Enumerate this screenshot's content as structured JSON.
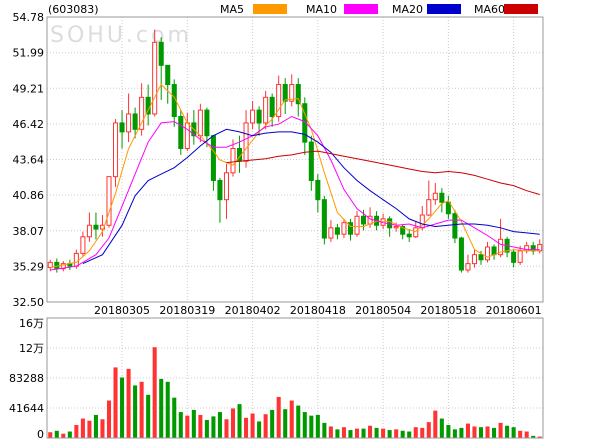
{
  "stock_code": "(603083)",
  "watermark": "SOHU.com",
  "legend": [
    {
      "label": "MA5",
      "color": "#ff9900"
    },
    {
      "label": "MA10",
      "color": "#ff00ff"
    },
    {
      "label": "MA20",
      "color": "#0000cc"
    },
    {
      "label": "MA60",
      "color": "#cc0000"
    }
  ],
  "colors": {
    "up": "#ff3333",
    "down": "#009900",
    "grid": "#cccccc",
    "frame": "#999999"
  },
  "chart_data": {
    "type": "candlestick",
    "price_axis": {
      "ylim": [
        32.5,
        54.78
      ],
      "ticks": [
        "54.78",
        "51.99",
        "49.21",
        "46.42",
        "43.64",
        "40.86",
        "38.07",
        "35.29",
        "32.50"
      ]
    },
    "volume_axis": {
      "ylim": [
        0,
        166576
      ],
      "ticks": [
        {
          "label": "16万",
          "value": 166576
        },
        {
          "label": "12万",
          "value": 124932
        },
        {
          "label": "83288",
          "value": 83288
        },
        {
          "label": "41644",
          "value": 41644
        },
        {
          "label": "0",
          "value": 0
        }
      ]
    },
    "x_labels": [
      {
        "label": "20180305",
        "index": 11
      },
      {
        "label": "20180319",
        "index": 21
      },
      {
        "label": "20180402",
        "index": 31
      },
      {
        "label": "20180418",
        "index": 41
      },
      {
        "label": "20180504",
        "index": 51
      },
      {
        "label": "20180518",
        "index": 61
      },
      {
        "label": "20180601",
        "index": 71
      }
    ],
    "candles": [
      [
        35.2,
        35.6,
        34.9,
        35.8
      ],
      [
        35.6,
        35.1,
        34.8,
        35.9
      ],
      [
        35.1,
        35.5,
        34.9,
        35.7
      ],
      [
        35.5,
        35.3,
        35.0,
        35.8
      ],
      [
        35.3,
        36.3,
        35.1,
        36.6
      ],
      [
        36.3,
        37.6,
        36.1,
        38.0
      ],
      [
        37.6,
        38.5,
        37.2,
        39.5
      ],
      [
        38.5,
        38.2,
        37.4,
        39.5
      ],
      [
        38.2,
        38.5,
        37.6,
        39.3
      ],
      [
        38.5,
        42.3,
        38.3,
        42.3
      ],
      [
        42.3,
        46.5,
        41.5,
        46.8
      ],
      [
        46.5,
        45.8,
        44.5,
        47.5
      ],
      [
        45.8,
        47.2,
        45.0,
        48.8
      ],
      [
        47.2,
        46.0,
        45.3,
        47.7
      ],
      [
        46.0,
        48.5,
        45.5,
        49.6
      ],
      [
        48.5,
        47.2,
        46.3,
        49.5
      ],
      [
        47.2,
        52.8,
        47.0,
        53.8
      ],
      [
        52.8,
        51.0,
        48.3,
        53.2
      ],
      [
        51.0,
        49.5,
        48.0,
        51.0
      ],
      [
        49.5,
        47.0,
        46.2,
        49.9
      ],
      [
        47.0,
        44.5,
        44.0,
        47.5
      ],
      [
        44.5,
        46.5,
        44.3,
        47.3
      ],
      [
        46.5,
        45.5,
        44.8,
        47.5
      ],
      [
        45.5,
        47.5,
        45.0,
        48.0
      ],
      [
        47.5,
        45.5,
        44.6,
        47.7
      ],
      [
        45.5,
        42.0,
        41.2,
        45.5
      ],
      [
        42.0,
        40.5,
        38.7,
        42.2
      ],
      [
        40.5,
        42.6,
        39.0,
        43.3
      ],
      [
        42.6,
        44.5,
        42.3,
        45.2
      ],
      [
        44.5,
        43.5,
        42.6,
        45.5
      ],
      [
        43.5,
        46.5,
        43.0,
        47.5
      ],
      [
        46.5,
        47.5,
        46.0,
        48.2
      ],
      [
        47.5,
        46.5,
        45.5,
        47.8
      ],
      [
        46.5,
        48.5,
        46.0,
        49.0
      ],
      [
        48.5,
        47.0,
        46.2,
        48.8
      ],
      [
        47.0,
        49.5,
        46.6,
        50.2
      ],
      [
        49.5,
        48.2,
        47.2,
        50.0
      ],
      [
        48.2,
        49.5,
        47.8,
        50.3
      ],
      [
        49.5,
        48.0,
        47.0,
        50.0
      ],
      [
        48.0,
        45.0,
        44.0,
        48.5
      ],
      [
        45.0,
        42.0,
        41.2,
        45.5
      ],
      [
        42.0,
        40.5,
        39.5,
        42.5
      ],
      [
        40.5,
        37.5,
        37.0,
        40.8
      ],
      [
        37.5,
        38.3,
        37.2,
        38.9
      ],
      [
        38.3,
        37.8,
        37.4,
        38.6
      ],
      [
        37.8,
        38.7,
        37.5,
        39.0
      ],
      [
        38.7,
        37.8,
        37.3,
        39.0
      ],
      [
        37.8,
        39.2,
        37.6,
        39.6
      ],
      [
        39.2,
        38.6,
        38.1,
        39.7
      ],
      [
        38.6,
        39.2,
        38.3,
        39.9
      ],
      [
        39.2,
        38.5,
        38.1,
        39.6
      ],
      [
        38.5,
        39.0,
        38.2,
        39.4
      ],
      [
        39.0,
        38.3,
        37.6,
        39.2
      ],
      [
        38.3,
        38.4,
        38.0,
        38.7
      ],
      [
        38.4,
        37.8,
        37.4,
        38.6
      ],
      [
        37.8,
        37.6,
        37.2,
        38.2
      ],
      [
        37.6,
        38.3,
        37.5,
        38.8
      ],
      [
        38.3,
        39.3,
        38.1,
        40.0
      ],
      [
        39.3,
        40.5,
        39.2,
        42.0
      ],
      [
        40.5,
        41.0,
        40.1,
        41.8
      ],
      [
        41.0,
        40.3,
        39.5,
        41.4
      ],
      [
        40.3,
        39.4,
        39.0,
        40.8
      ],
      [
        39.4,
        37.5,
        37.1,
        39.7
      ],
      [
        37.5,
        35.0,
        34.8,
        37.6
      ],
      [
        35.0,
        35.5,
        34.8,
        36.2
      ],
      [
        35.5,
        36.2,
        35.2,
        36.6
      ],
      [
        36.2,
        35.8,
        35.4,
        36.5
      ],
      [
        35.8,
        36.8,
        35.6,
        37.2
      ],
      [
        36.8,
        36.2,
        35.8,
        37.0
      ],
      [
        36.2,
        37.4,
        36.0,
        39.0
      ],
      [
        37.4,
        36.4,
        36.0,
        37.6
      ],
      [
        36.4,
        35.6,
        35.2,
        36.6
      ],
      [
        35.6,
        36.5,
        35.4,
        36.9
      ],
      [
        36.5,
        36.9,
        36.3,
        37.2
      ],
      [
        36.9,
        36.5,
        36.2,
        37.2
      ],
      [
        36.5,
        37.0,
        36.3,
        37.4
      ]
    ],
    "volumes": [
      8000,
      10000,
      6000,
      9000,
      18000,
      27000,
      24000,
      32000,
      26000,
      52000,
      98000,
      84000,
      96000,
      73000,
      78000,
      60000,
      126000,
      82000,
      78000,
      56000,
      36000,
      31000,
      39000,
      32000,
      25000,
      30000,
      36000,
      26000,
      41000,
      47000,
      28000,
      34000,
      23000,
      33000,
      39000,
      57000,
      40000,
      52000,
      45000,
      36000,
      31000,
      32000,
      21000,
      16000,
      12000,
      15000,
      11000,
      13000,
      13000,
      17000,
      14000,
      13000,
      11000,
      12000,
      10000,
      9000,
      15000,
      14000,
      22000,
      38000,
      27000,
      18000,
      12000,
      14000,
      20000,
      16000,
      15000,
      16000,
      14000,
      21000,
      17000,
      15000,
      10000,
      9000,
      3000,
      2000
    ],
    "ma": {
      "MA5": [
        [
          0,
          35.2
        ],
        [
          4,
          35.6
        ],
        [
          6,
          36.5
        ],
        [
          8,
          38.0
        ],
        [
          10,
          41.0
        ],
        [
          12,
          44.5
        ],
        [
          14,
          46.5
        ],
        [
          16,
          48.5
        ],
        [
          17,
          49.5
        ],
        [
          19,
          48.5
        ],
        [
          21,
          46.5
        ],
        [
          23,
          45.5
        ],
        [
          25,
          44.3
        ],
        [
          26,
          43.6
        ],
        [
          28,
          43.2
        ],
        [
          30,
          44.5
        ],
        [
          32,
          45.8
        ],
        [
          34,
          46.8
        ],
        [
          36,
          48.3
        ],
        [
          38,
          48.4
        ],
        [
          40,
          46.0
        ],
        [
          42,
          42.6
        ],
        [
          44,
          39.5
        ],
        [
          46,
          38.4
        ],
        [
          48,
          38.4
        ],
        [
          50,
          38.8
        ],
        [
          52,
          38.8
        ],
        [
          54,
          38.3
        ],
        [
          56,
          38.0
        ],
        [
          58,
          39.0
        ],
        [
          60,
          40.2
        ],
        [
          61,
          40.4
        ],
        [
          63,
          38.8
        ],
        [
          65,
          36.6
        ],
        [
          67,
          36.0
        ],
        [
          69,
          36.4
        ],
        [
          71,
          36.6
        ],
        [
          73,
          36.5
        ],
        [
          75,
          36.5
        ]
      ],
      "MA10": [
        [
          0,
          35.0
        ],
        [
          4,
          35.3
        ],
        [
          7,
          36.2
        ],
        [
          9,
          37.5
        ],
        [
          11,
          40.0
        ],
        [
          13,
          42.5
        ],
        [
          15,
          45.0
        ],
        [
          17,
          46.5
        ],
        [
          19,
          46.6
        ],
        [
          21,
          46.0
        ],
        [
          23,
          45.2
        ],
        [
          25,
          44.6
        ],
        [
          27,
          44.6
        ],
        [
          29,
          45.0
        ],
        [
          31,
          45.5
        ],
        [
          33,
          46.2
        ],
        [
          35,
          46.4
        ],
        [
          37,
          47.0
        ],
        [
          39,
          46.6
        ],
        [
          41,
          45.5
        ],
        [
          43,
          43.6
        ],
        [
          45,
          41.3
        ],
        [
          47,
          39.8
        ],
        [
          49,
          39.0
        ],
        [
          51,
          38.7
        ],
        [
          53,
          38.5
        ],
        [
          55,
          38.6
        ],
        [
          57,
          38.3
        ],
        [
          59,
          38.6
        ],
        [
          61,
          38.9
        ],
        [
          63,
          38.9
        ],
        [
          65,
          38.3
        ],
        [
          67,
          37.7
        ],
        [
          69,
          37.0
        ],
        [
          71,
          36.8
        ],
        [
          73,
          36.6
        ],
        [
          75,
          36.6
        ]
      ],
      "MA20": [
        [
          5,
          35.5
        ],
        [
          8,
          36.2
        ],
        [
          11,
          38.5
        ],
        [
          13,
          40.8
        ],
        [
          15,
          42.0
        ],
        [
          17,
          42.5
        ],
        [
          19,
          43.0
        ],
        [
          21,
          43.8
        ],
        [
          23,
          44.7
        ],
        [
          25,
          45.5
        ],
        [
          27,
          46.0
        ],
        [
          29,
          45.8
        ],
        [
          31,
          45.5
        ],
        [
          33,
          45.7
        ],
        [
          35,
          45.8
        ],
        [
          37,
          45.8
        ],
        [
          39,
          45.6
        ],
        [
          41,
          45.0
        ],
        [
          43,
          44.2
        ],
        [
          45,
          43.0
        ],
        [
          47,
          42.0
        ],
        [
          49,
          41.2
        ],
        [
          51,
          40.5
        ],
        [
          53,
          39.8
        ],
        [
          55,
          39.0
        ],
        [
          57,
          38.6
        ],
        [
          59,
          38.4
        ],
        [
          61,
          38.5
        ],
        [
          63,
          38.6
        ],
        [
          65,
          38.6
        ],
        [
          67,
          38.5
        ],
        [
          69,
          38.3
        ],
        [
          71,
          38.0
        ],
        [
          73,
          37.9
        ],
        [
          75,
          37.8
        ]
      ],
      "MA60": [
        [
          27,
          43.4
        ],
        [
          29,
          43.5
        ],
        [
          31,
          43.6
        ],
        [
          33,
          43.7
        ],
        [
          35,
          43.9
        ],
        [
          37,
          44.0
        ],
        [
          39,
          44.2
        ],
        [
          41,
          44.3
        ],
        [
          43,
          44.1
        ],
        [
          45,
          43.9
        ],
        [
          47,
          43.7
        ],
        [
          49,
          43.5
        ],
        [
          51,
          43.3
        ],
        [
          53,
          43.1
        ],
        [
          55,
          42.9
        ],
        [
          57,
          42.7
        ],
        [
          59,
          42.6
        ],
        [
          61,
          42.7
        ],
        [
          63,
          42.6
        ],
        [
          65,
          42.4
        ],
        [
          67,
          42.1
        ],
        [
          69,
          41.8
        ],
        [
          71,
          41.6
        ],
        [
          73,
          41.2
        ],
        [
          75,
          40.9
        ]
      ]
    }
  }
}
